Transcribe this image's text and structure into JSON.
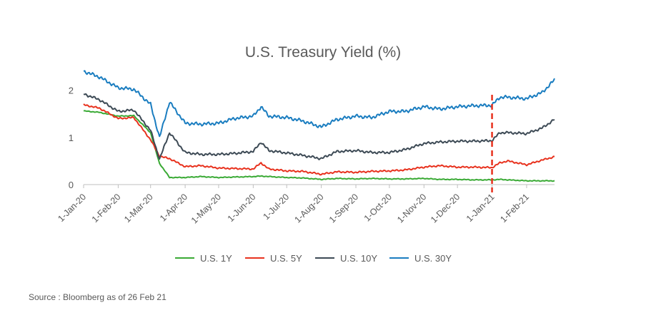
{
  "chart_data": {
    "type": "line",
    "title": "U.S. Treasury Yield (%)",
    "xlabel": "",
    "ylabel": "",
    "x_ticks": [
      "1-Jan-20",
      "1-Feb-20",
      "1-Mar-20",
      "1-Apr-20",
      "1-May-20",
      "1-Jun-20",
      "1-Jul-20",
      "1-Aug-20",
      "1-Sep-20",
      "1-Oct-20",
      "1-Nov-20",
      "1-Dec-20",
      "1-Jan-21",
      "1-Feb-21"
    ],
    "y_ticks": [
      "0",
      "1",
      "2"
    ],
    "ylim": [
      0,
      2.4
    ],
    "xlim": [
      "2020-01-01",
      "2021-02-26"
    ],
    "grid": false,
    "legend_position": "bottom",
    "annotation": {
      "type": "vertical dashed line",
      "x": "2021-01-01",
      "color": "#e8321e"
    },
    "x": [
      "2020-01-01",
      "2020-01-15",
      "2020-02-01",
      "2020-02-15",
      "2020-03-01",
      "2020-03-09",
      "2020-03-18",
      "2020-04-01",
      "2020-04-15",
      "2020-05-01",
      "2020-05-15",
      "2020-06-01",
      "2020-06-08",
      "2020-06-15",
      "2020-07-01",
      "2020-07-15",
      "2020-08-01",
      "2020-08-15",
      "2020-09-01",
      "2020-09-15",
      "2020-10-01",
      "2020-10-15",
      "2020-11-01",
      "2020-11-15",
      "2020-12-01",
      "2020-12-15",
      "2021-01-01",
      "2021-01-08",
      "2021-01-15",
      "2021-02-01",
      "2021-02-15",
      "2021-02-26"
    ],
    "series": [
      {
        "name": "U.S. 1Y",
        "color": "#3aaa35",
        "values": [
          1.56,
          1.53,
          1.45,
          1.46,
          1.1,
          0.45,
          0.15,
          0.15,
          0.17,
          0.15,
          0.16,
          0.17,
          0.18,
          0.17,
          0.15,
          0.14,
          0.11,
          0.13,
          0.12,
          0.13,
          0.12,
          0.12,
          0.13,
          0.11,
          0.11,
          0.1,
          0.1,
          0.11,
          0.1,
          0.08,
          0.08,
          0.08
        ]
      },
      {
        "name": "U.S. 5Y",
        "color": "#e8321e",
        "values": [
          1.69,
          1.62,
          1.4,
          1.42,
          0.95,
          0.6,
          0.55,
          0.38,
          0.4,
          0.35,
          0.34,
          0.33,
          0.46,
          0.33,
          0.29,
          0.28,
          0.22,
          0.27,
          0.26,
          0.28,
          0.29,
          0.31,
          0.37,
          0.4,
          0.37,
          0.37,
          0.36,
          0.46,
          0.5,
          0.42,
          0.52,
          0.59
        ]
      },
      {
        "name": "U.S. 10Y",
        "color": "#3d4a55",
        "values": [
          1.92,
          1.8,
          1.55,
          1.58,
          1.15,
          0.54,
          1.1,
          0.68,
          0.64,
          0.64,
          0.66,
          0.7,
          0.9,
          0.72,
          0.67,
          0.62,
          0.55,
          0.7,
          0.72,
          0.68,
          0.68,
          0.74,
          0.87,
          0.9,
          0.92,
          0.92,
          0.93,
          1.1,
          1.1,
          1.08,
          1.2,
          1.38
        ]
      },
      {
        "name": "U.S. 30Y",
        "color": "#1a7dc0",
        "values": [
          2.4,
          2.28,
          2.05,
          2.02,
          1.7,
          1.0,
          1.75,
          1.3,
          1.28,
          1.3,
          1.4,
          1.45,
          1.65,
          1.45,
          1.42,
          1.35,
          1.22,
          1.38,
          1.45,
          1.42,
          1.55,
          1.55,
          1.65,
          1.6,
          1.65,
          1.67,
          1.68,
          1.85,
          1.85,
          1.82,
          1.95,
          2.22
        ]
      }
    ]
  },
  "source": "Source : Bloomberg as of 26 Feb 21"
}
